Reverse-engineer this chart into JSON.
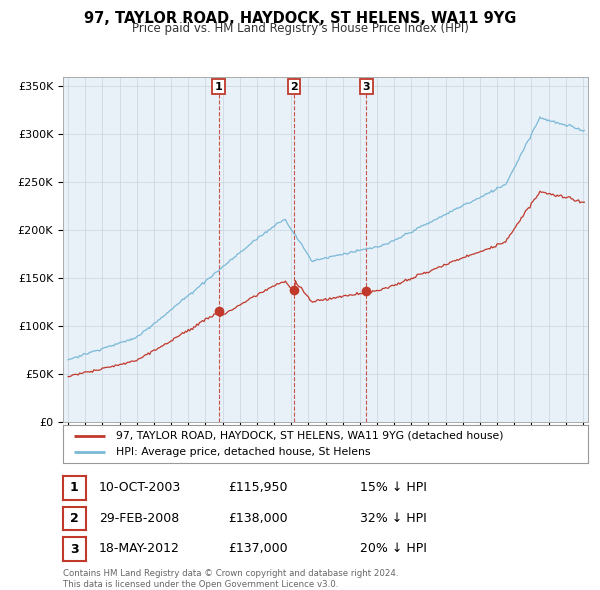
{
  "title": "97, TAYLOR ROAD, HAYDOCK, ST HELENS, WA11 9YG",
  "subtitle": "Price paid vs. HM Land Registry's House Price Index (HPI)",
  "legend_line1": "97, TAYLOR ROAD, HAYDOCK, ST HELENS, WA11 9YG (detached house)",
  "legend_line2": "HPI: Average price, detached house, St Helens",
  "copyright": "Contains HM Land Registry data © Crown copyright and database right 2024.\nThis data is licensed under the Open Government Licence v3.0.",
  "transactions": [
    {
      "num": 1,
      "date": "10-OCT-2003",
      "price": "£115,950",
      "pct": "15% ↓ HPI",
      "year": 2003.78,
      "value": 115950
    },
    {
      "num": 2,
      "date": "29-FEB-2008",
      "price": "£138,000",
      "pct": "32% ↓ HPI",
      "year": 2008.17,
      "value": 138000
    },
    {
      "num": 3,
      "date": "18-MAY-2012",
      "price": "£137,000",
      "pct": "20% ↓ HPI",
      "year": 2012.38,
      "value": 137000
    }
  ],
  "hpi_color": "#7ab9d8",
  "sale_color": "#c0392b",
  "bg_color": "#e8f0f8",
  "grid_color": "#c8d4e0",
  "ylim": [
    0,
    360000
  ],
  "xlim_start": 1994.7,
  "xlim_end": 2025.3,
  "yticks": [
    0,
    50000,
    100000,
    150000,
    200000,
    250000,
    300000,
    350000
  ],
  "ytick_labels": [
    "£0",
    "£50K",
    "£100K",
    "£150K",
    "£200K",
    "£250K",
    "£300K",
    "£350K"
  ],
  "xticks": [
    1995,
    1996,
    1997,
    1998,
    1999,
    2000,
    2001,
    2002,
    2003,
    2004,
    2005,
    2006,
    2007,
    2008,
    2009,
    2010,
    2011,
    2012,
    2013,
    2014,
    2015,
    2016,
    2017,
    2018,
    2019,
    2020,
    2021,
    2022,
    2023,
    2024,
    2025
  ]
}
